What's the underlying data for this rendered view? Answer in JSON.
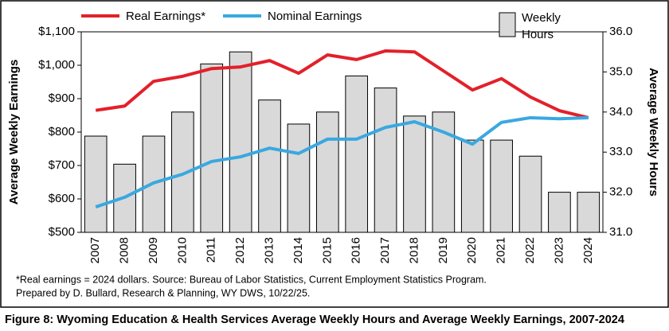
{
  "chart_data": {
    "type": "bar_line",
    "title": "Figure 8: Wyoming Education & Health Services Average Weekly Hours and Average Weekly Earnings, 2007-2024",
    "footnote": [
      "*Real earnings = 2024 dollars. Source: Bureau of Labor Statistics, Current Employment Statistics Program.",
      "Prepared by D. Bullard, Research & Planning, WY DWS, 10/22/25."
    ],
    "y_label": "Average Weekly Earnings",
    "y2_label": "Average Weekly Hours",
    "legend": "top",
    "categories": [
      "2007",
      "2008",
      "2009",
      "2010",
      "2011",
      "2012",
      "2013",
      "2014",
      "2015",
      "2016",
      "2017",
      "2018",
      "2019",
      "2020",
      "2021",
      "2022",
      "2023",
      "2024"
    ],
    "ylim": [
      500,
      1100
    ],
    "yticks": [
      {
        "value": 500,
        "label": "$500"
      },
      {
        "value": 600,
        "label": "$600"
      },
      {
        "value": 700,
        "label": "$700"
      },
      {
        "value": 800,
        "label": "$800"
      },
      {
        "value": 900,
        "label": "$900"
      },
      {
        "value": 1000,
        "label": "$1,000"
      },
      {
        "value": 1100,
        "label": "$1,100"
      }
    ],
    "y2lim": [
      31,
      36
    ],
    "y2ticks": [
      {
        "value": 31,
        "label": "31.0"
      },
      {
        "value": 32,
        "label": "32.0"
      },
      {
        "value": 33,
        "label": "33.0"
      },
      {
        "value": 34,
        "label": "34.0"
      },
      {
        "value": 35,
        "label": "35.0"
      },
      {
        "value": 36,
        "label": "36.0"
      }
    ],
    "series": [
      {
        "name": "Real Earnings*",
        "kind": "line",
        "color": "#e3202a",
        "values": [
          865,
          878,
          952,
          967,
          990,
          995,
          1014,
          976,
          1031,
          1017,
          1043,
          1040,
          983,
          926,
          960,
          905,
          864,
          843
        ]
      },
      {
        "name": "Nominal Earnings",
        "kind": "line",
        "color": "#3aa8e0",
        "values": [
          576,
          605,
          648,
          674,
          712,
          726,
          752,
          736,
          779,
          779,
          814,
          831,
          800,
          764,
          829,
          843,
          840,
          843
        ]
      },
      {
        "name": "Weekly Hours",
        "kind": "bar",
        "axis": "y2",
        "color": "#d9d9d9",
        "values": [
          33.4,
          32.7,
          33.4,
          34.0,
          35.2,
          35.5,
          34.3,
          33.7,
          34.0,
          34.9,
          34.6,
          33.9,
          34.0,
          33.3,
          33.3,
          32.9,
          32.0,
          32.0
        ]
      }
    ]
  }
}
